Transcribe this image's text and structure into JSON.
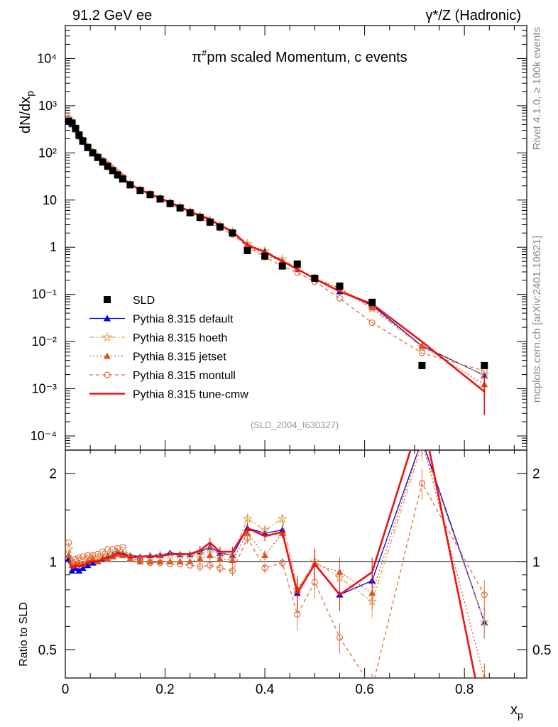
{
  "header": {
    "left": "91.2 GeV ee",
    "right": "γ*/Z (Hadronic)",
    "side_top": "Rivet 4.1.0, ≥ 100k events",
    "side_bottom": "mcplots.cern.ch [arXiv:2401.10621]"
  },
  "chart_data": {
    "type": "line",
    "title": "π#pm scaled Momentum, c events",
    "analysis_tag": "(SLD_2004_I630327)",
    "xlabel": "xp",
    "ylabel": "dN/dxp",
    "ratio_ylabel": "Ratio to SLD",
    "xlim": [
      0,
      0.925
    ],
    "ylim_main": [
      5e-05,
      50000
    ],
    "ylim_ratio": [
      0.4,
      2.4
    ],
    "yscale_main": "log",
    "yscale_ratio": "log",
    "x_ticks": [
      "0",
      "0.2",
      "0.4",
      "0.6",
      "0.8"
    ],
    "main_y_ticks": [
      "10⁻⁴",
      "10⁻³",
      "10⁻²",
      "10⁻¹",
      "1",
      "10",
      "10²",
      "10³",
      "10⁴"
    ],
    "ratio_y_ticks": [
      "0.5",
      "1",
      "2"
    ],
    "legend": [
      "SLD",
      "Pythia 8.315 default",
      "Pythia 8.315 hoeth",
      "Pythia 8.315 jetset",
      "Pythia 8.315 montull",
      "Pythia 8.315 tune-cmw"
    ],
    "x": [
      0.0065,
      0.0135,
      0.0205,
      0.0275,
      0.035,
      0.045,
      0.055,
      0.065,
      0.075,
      0.085,
      0.095,
      0.105,
      0.115,
      0.13,
      0.15,
      0.17,
      0.19,
      0.21,
      0.23,
      0.25,
      0.27,
      0.29,
      0.31,
      0.335,
      0.365,
      0.4,
      0.435,
      0.465,
      0.5,
      0.55,
      0.615,
      0.715,
      0.84
    ],
    "data": {
      "name": "SLD",
      "color": "#000000",
      "values": [
        470,
        430,
        330,
        240,
        180,
        130,
        100,
        80,
        64,
        52,
        42,
        34,
        28,
        21,
        16,
        13,
        10.5,
        8.4,
        6.8,
        5.4,
        4.3,
        3.4,
        2.7,
        2.0,
        0.85,
        0.65,
        0.4,
        0.44,
        0.22,
        0.15,
        0.068,
        0.0031,
        0.0031
      ]
    },
    "series": [
      {
        "name": "Pythia 8.315 default",
        "color": "#0000dd",
        "dash": "",
        "marker": "triangle",
        "ratio": [
          1.02,
          0.93,
          0.95,
          0.93,
          0.95,
          0.97,
          0.99,
          1.0,
          1.02,
          1.04,
          1.05,
          1.08,
          1.07,
          1.05,
          1.04,
          1.05,
          1.05,
          1.07,
          1.06,
          1.06,
          1.08,
          1.12,
          1.07,
          1.05,
          1.3,
          1.25,
          1.28,
          0.78,
          0.98,
          0.77,
          0.86,
          2.6,
          0.62
        ]
      },
      {
        "name": "Pythia 8.315 hoeth",
        "color": "#e8a050",
        "dash": "7,3,2,3",
        "marker": "star",
        "ratio": [
          1.1,
          0.98,
          1.0,
          0.98,
          1.0,
          1.02,
          1.03,
          1.02,
          1.04,
          1.05,
          1.06,
          1.07,
          1.06,
          1.04,
          1.03,
          1.04,
          1.05,
          1.05,
          1.05,
          1.05,
          1.06,
          1.1,
          1.06,
          1.05,
          1.4,
          1.28,
          1.4,
          0.8,
          1.0,
          0.88,
          0.73,
          2.5,
          0.62
        ]
      },
      {
        "name": "Pythia 8.315 jetset",
        "color": "#e05020",
        "dash": "2,3",
        "marker": "triangle",
        "ratio": [
          1.05,
          0.97,
          0.98,
          0.98,
          0.98,
          1.0,
          1.02,
          1.0,
          1.03,
          1.02,
          1.04,
          1.06,
          1.05,
          1.02,
          1.0,
          1.0,
          1.0,
          1.0,
          1.0,
          1.0,
          1.02,
          1.05,
          1.02,
          1.01,
          1.25,
          1.05,
          1.25,
          0.8,
          0.98,
          0.92,
          0.78,
          2.6,
          0.4
        ]
      },
      {
        "name": "Pythia 8.315 montull",
        "color": "#e07040",
        "dash": "5,4",
        "marker": "circle",
        "ratio": [
          1.16,
          1.0,
          1.02,
          1.03,
          1.04,
          1.05,
          1.05,
          1.06,
          1.08,
          1.1,
          1.1,
          1.11,
          1.12,
          1.04,
          1.0,
          0.99,
          0.99,
          0.98,
          0.98,
          0.97,
          0.96,
          0.97,
          0.95,
          0.93,
          1.2,
          0.95,
          0.99,
          0.66,
          0.85,
          0.55,
          0.37,
          1.85,
          0.77
        ]
      },
      {
        "name": "Pythia 8.315 tune-cmw",
        "color": "#ee1111",
        "dash": "",
        "marker": "none",
        "ratio": [
          1.0,
          0.95,
          0.97,
          0.96,
          0.97,
          0.99,
          1.0,
          1.0,
          1.02,
          1.03,
          1.04,
          1.07,
          1.06,
          1.03,
          1.04,
          1.04,
          1.04,
          1.06,
          1.06,
          1.06,
          1.09,
          1.16,
          1.08,
          1.08,
          1.3,
          1.22,
          1.26,
          0.78,
          0.98,
          0.77,
          0.92,
          3.2,
          0.28
        ]
      }
    ]
  }
}
